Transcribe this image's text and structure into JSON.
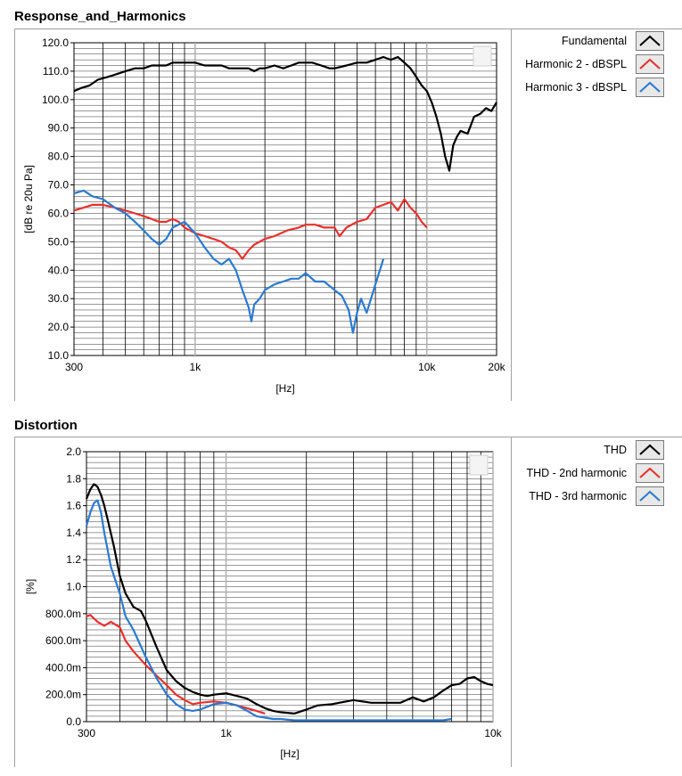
{
  "chart_data": [
    {
      "type": "line",
      "title": "Response_and_Harmonics",
      "xlabel": "[Hz]",
      "ylabel": "[dB re 20u Pa]",
      "xscale": "log",
      "xlim": [
        300,
        20000
      ],
      "ylim": [
        10,
        120
      ],
      "xticks": [
        300,
        1000,
        10000,
        20000
      ],
      "xtick_labels": [
        "300",
        "1k",
        "10k",
        "20k"
      ],
      "yticks": [
        10,
        20,
        30,
        40,
        50,
        60,
        70,
        80,
        90,
        100,
        110,
        120
      ],
      "ytick_labels": [
        "10.0",
        "20.0",
        "30.0",
        "40.0",
        "50.0",
        "60.0",
        "70.0",
        "80.0",
        "90.0",
        "100.0",
        "110.0",
        "120.0"
      ],
      "grid": true,
      "legend_position": "right",
      "series": [
        {
          "name": "Fundamental",
          "color": "#000000",
          "x": [
            300,
            320,
            350,
            380,
            420,
            460,
            500,
            550,
            600,
            650,
            700,
            750,
            800,
            900,
            1000,
            1100,
            1200,
            1300,
            1400,
            1500,
            1600,
            1700,
            1800,
            1900,
            2000,
            2200,
            2400,
            2600,
            2800,
            3000,
            3200,
            3500,
            3800,
            4000,
            4500,
            5000,
            5500,
            6000,
            6500,
            7000,
            7500,
            8000,
            8500,
            9000,
            9500,
            10000,
            10500,
            11000,
            11500,
            12000,
            12200,
            12500,
            13000,
            13500,
            14000,
            15000,
            16000,
            17000,
            18000,
            19000,
            20000
          ],
          "y": [
            103,
            104,
            105,
            107,
            108,
            109,
            110,
            111,
            111,
            112,
            112,
            112,
            113,
            113,
            113,
            112,
            112,
            112,
            111,
            111,
            111,
            111,
            110,
            111,
            111,
            112,
            111,
            112,
            113,
            113,
            113,
            112,
            111,
            111,
            112,
            113,
            113,
            114,
            115,
            114,
            115,
            113,
            111,
            108,
            105,
            103,
            99,
            94,
            88,
            80,
            78,
            75,
            84,
            87,
            89,
            88,
            94,
            95,
            97,
            96,
            99
          ]
        },
        {
          "name": "Harmonic 2 - dBSPL",
          "color": "#e8302c",
          "x": [
            300,
            330,
            360,
            400,
            450,
            500,
            550,
            600,
            650,
            700,
            750,
            800,
            850,
            900,
            1000,
            1100,
            1200,
            1300,
            1400,
            1500,
            1600,
            1700,
            1800,
            2000,
            2200,
            2500,
            2800,
            3000,
            3300,
            3600,
            4000,
            4200,
            4500,
            5000,
            5500,
            6000,
            6500,
            7000,
            7500,
            8000,
            8500,
            9000,
            9500,
            10000
          ],
          "y": [
            61,
            62,
            63,
            63,
            62,
            61,
            60,
            59,
            58,
            57,
            57,
            58,
            57,
            55,
            53,
            52,
            51,
            50,
            48,
            47,
            44,
            47,
            49,
            51,
            52,
            54,
            55,
            56,
            56,
            55,
            55,
            52,
            55,
            57,
            58,
            62,
            63,
            64,
            61,
            65,
            62,
            60,
            57,
            55
          ]
        },
        {
          "name": "Harmonic 3 - dBSPL",
          "color": "#2a7ad0",
          "x": [
            300,
            330,
            360,
            400,
            450,
            500,
            550,
            600,
            650,
            700,
            750,
            800,
            900,
            1000,
            1100,
            1200,
            1300,
            1400,
            1500,
            1600,
            1700,
            1750,
            1800,
            1900,
            2000,
            2200,
            2400,
            2600,
            2800,
            3000,
            3300,
            3600,
            4000,
            4300,
            4600,
            4800,
            5000,
            5200,
            5500,
            6000,
            6500
          ],
          "y": [
            67,
            68,
            66,
            65,
            62,
            60,
            57,
            54,
            51,
            49,
            51,
            55,
            57,
            53,
            48,
            44,
            42,
            44,
            40,
            33,
            27,
            22,
            28,
            30,
            33,
            35,
            36,
            37,
            37,
            39,
            36,
            36,
            33,
            31,
            26,
            18,
            25,
            30,
            25,
            35,
            44
          ]
        }
      ]
    },
    {
      "type": "line",
      "title": "Distortion",
      "xlabel": "[Hz]",
      "ylabel": "[%]",
      "xscale": "log",
      "xlim": [
        300,
        10000
      ],
      "ylim": [
        0,
        2.0
      ],
      "xticks": [
        300,
        1000,
        10000
      ],
      "xtick_labels": [
        "300",
        "1k",
        "10k"
      ],
      "yticks": [
        0,
        0.2,
        0.4,
        0.6,
        0.8,
        1.0,
        1.2,
        1.4,
        1.6,
        1.8,
        2.0
      ],
      "ytick_labels": [
        "0.0",
        "200.0m",
        "400.0m",
        "600.0m",
        "800.0m",
        "1.0",
        "1.2",
        "1.4",
        "1.6",
        "1.8",
        "2.0"
      ],
      "grid": true,
      "legend_position": "right",
      "series": [
        {
          "name": "THD",
          "color": "#000000",
          "x": [
            300,
            310,
            320,
            330,
            340,
            350,
            360,
            380,
            400,
            420,
            450,
            480,
            500,
            550,
            600,
            650,
            700,
            750,
            800,
            850,
            900,
            1000,
            1100,
            1200,
            1300,
            1400,
            1500,
            1600,
            1800,
            2000,
            2200,
            2500,
            3000,
            3500,
            4000,
            4500,
            5000,
            5500,
            6000,
            6500,
            7000,
            7500,
            8000,
            8500,
            9000,
            9500,
            10000
          ],
          "y": [
            1.65,
            1.72,
            1.76,
            1.74,
            1.68,
            1.6,
            1.5,
            1.3,
            1.08,
            0.95,
            0.85,
            0.82,
            0.75,
            0.55,
            0.38,
            0.3,
            0.25,
            0.22,
            0.2,
            0.19,
            0.2,
            0.21,
            0.19,
            0.17,
            0.13,
            0.1,
            0.08,
            0.07,
            0.06,
            0.09,
            0.12,
            0.13,
            0.16,
            0.14,
            0.14,
            0.14,
            0.18,
            0.15,
            0.18,
            0.23,
            0.27,
            0.28,
            0.32,
            0.33,
            0.3,
            0.28,
            0.27
          ]
        },
        {
          "name": "THD - 2nd harmonic",
          "color": "#e8302c",
          "x": [
            300,
            310,
            330,
            350,
            370,
            400,
            420,
            450,
            500,
            550,
            600,
            650,
            700,
            750,
            800,
            900,
            1000,
            1100,
            1200,
            1300,
            1400
          ],
          "y": [
            0.78,
            0.79,
            0.74,
            0.71,
            0.74,
            0.7,
            0.6,
            0.52,
            0.42,
            0.34,
            0.27,
            0.2,
            0.16,
            0.13,
            0.14,
            0.15,
            0.14,
            0.12,
            0.1,
            0.08,
            0.06
          ]
        },
        {
          "name": "THD - 3rd harmonic",
          "color": "#2a7ad0",
          "x": [
            300,
            310,
            320,
            330,
            340,
            350,
            370,
            400,
            420,
            450,
            500,
            550,
            600,
            650,
            700,
            750,
            800,
            850,
            900,
            1000,
            1100,
            1200,
            1300,
            1400,
            1500,
            1600,
            1800,
            2000,
            2500,
            3000,
            3500,
            4000,
            5000,
            6000,
            6500,
            7000
          ],
          "y": [
            1.45,
            1.55,
            1.62,
            1.64,
            1.55,
            1.4,
            1.15,
            0.95,
            0.78,
            0.68,
            0.48,
            0.32,
            0.2,
            0.13,
            0.09,
            0.08,
            0.09,
            0.11,
            0.13,
            0.14,
            0.12,
            0.08,
            0.04,
            0.03,
            0.02,
            0.02,
            0.01,
            0.01,
            0.01,
            0.01,
            0.01,
            0.01,
            0.01,
            0.01,
            0.01,
            0.02
          ]
        }
      ]
    }
  ]
}
